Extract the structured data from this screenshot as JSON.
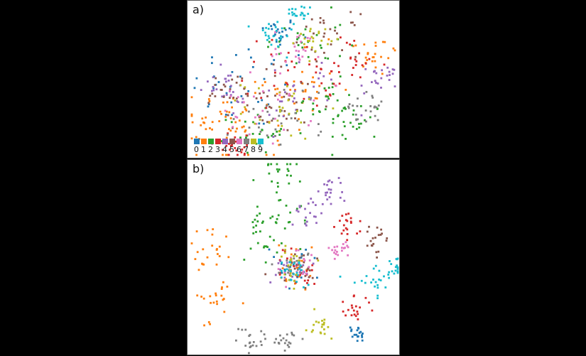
{
  "classes": [
    "0",
    "1",
    "2",
    "3",
    "4",
    "5",
    "6",
    "7",
    "8",
    "9"
  ],
  "colors": [
    "#1f77b4",
    "#ff7f0e",
    "#2ca02c",
    "#d62728",
    "#9467bd",
    "#8c564b",
    "#e377c2",
    "#7f7f7f",
    "#bcbd22",
    "#17becf"
  ],
  "chart_data": [
    {
      "type": "scatter",
      "panel": "a)",
      "series": [
        {
          "name": "0",
          "clusters": [
            [
              0.42,
              0.82,
              0.05
            ],
            [
              0.3,
              0.45,
              0.15
            ]
          ]
        },
        {
          "name": "1",
          "clusters": [
            [
              0.15,
              0.25,
              0.08
            ],
            [
              0.88,
              0.68,
              0.08
            ],
            [
              0.55,
              0.42,
              0.09
            ],
            [
              0.25,
              0.2,
              0.2
            ]
          ]
        },
        {
          "name": "2",
          "clusters": [
            [
              0.8,
              0.22,
              0.07
            ],
            [
              0.66,
              0.33,
              0.08
            ],
            [
              0.32,
              0.15,
              0.07
            ],
            [
              0.55,
              0.75,
              0.1
            ]
          ]
        },
        {
          "name": "3",
          "clusters": [
            [
              0.78,
              0.6,
              0.08
            ],
            [
              0.22,
              0.07,
              0.05
            ],
            [
              0.5,
              0.55,
              0.12
            ]
          ]
        },
        {
          "name": "4",
          "clusters": [
            [
              0.93,
              0.5,
              0.05
            ],
            [
              0.15,
              0.45,
              0.06
            ],
            [
              0.5,
              0.4,
              0.12
            ]
          ]
        },
        {
          "name": "5",
          "clusters": [
            [
              0.68,
              0.8,
              0.07
            ],
            [
              0.45,
              0.35,
              0.12
            ],
            [
              0.2,
              0.4,
              0.08
            ]
          ]
        },
        {
          "name": "6",
          "clusters": [
            [
              0.52,
              0.72,
              0.06
            ],
            [
              0.35,
              0.3,
              0.12
            ]
          ]
        },
        {
          "name": "7",
          "clusters": [
            [
              0.85,
              0.32,
              0.05
            ],
            [
              0.45,
              0.25,
              0.12
            ]
          ]
        },
        {
          "name": "8",
          "clusters": [
            [
              0.6,
              0.78,
              0.04
            ],
            [
              0.45,
              0.3,
              0.1
            ]
          ]
        },
        {
          "name": "9",
          "clusters": [
            [
              0.5,
              0.92,
              0.04
            ],
            [
              0.4,
              0.8,
              0.05
            ]
          ]
        }
      ]
    },
    {
      "type": "scatter",
      "panel": "b)",
      "series": [
        {
          "name": "0",
          "clusters": [
            [
              0.8,
              0.1,
              0.02
            ],
            [
              0.5,
              0.45,
              0.05
            ]
          ]
        },
        {
          "name": "1",
          "clusters": [
            [
              0.12,
              0.28,
              0.06
            ],
            [
              0.08,
              0.55,
              0.06
            ],
            [
              0.5,
              0.45,
              0.05
            ]
          ]
        },
        {
          "name": "2",
          "clusters": [
            [
              0.43,
              0.95,
              0.05
            ],
            [
              0.4,
              0.75,
              0.06
            ],
            [
              0.35,
              0.6,
              0.06
            ]
          ]
        },
        {
          "name": "3",
          "clusters": [
            [
              0.78,
              0.22,
              0.04
            ],
            [
              0.76,
              0.67,
              0.04
            ],
            [
              0.5,
              0.45,
              0.05
            ]
          ]
        },
        {
          "name": "4",
          "clusters": [
            [
              0.67,
              0.85,
              0.04
            ],
            [
              0.58,
              0.75,
              0.04
            ],
            [
              0.5,
              0.45,
              0.05
            ]
          ]
        },
        {
          "name": "5",
          "clusters": [
            [
              0.9,
              0.6,
              0.03
            ],
            [
              0.5,
              0.45,
              0.05
            ]
          ]
        },
        {
          "name": "6",
          "clusters": [
            [
              0.72,
              0.55,
              0.03
            ],
            [
              0.5,
              0.45,
              0.05
            ]
          ]
        },
        {
          "name": "7",
          "clusters": [
            [
              0.3,
              0.07,
              0.04
            ],
            [
              0.45,
              0.05,
              0.03
            ],
            [
              0.5,
              0.45,
              0.05
            ]
          ]
        },
        {
          "name": "8",
          "clusters": [
            [
              0.62,
              0.15,
              0.03
            ],
            [
              0.5,
              0.45,
              0.05
            ]
          ]
        },
        {
          "name": "9",
          "clusters": [
            [
              0.88,
              0.38,
              0.04
            ],
            [
              0.98,
              0.45,
              0.03
            ],
            [
              0.5,
              0.45,
              0.05
            ]
          ]
        }
      ]
    }
  ],
  "panels": [
    {
      "label": "a)",
      "legend_visible": true
    },
    {
      "label": "b)",
      "legend_visible": false
    }
  ]
}
